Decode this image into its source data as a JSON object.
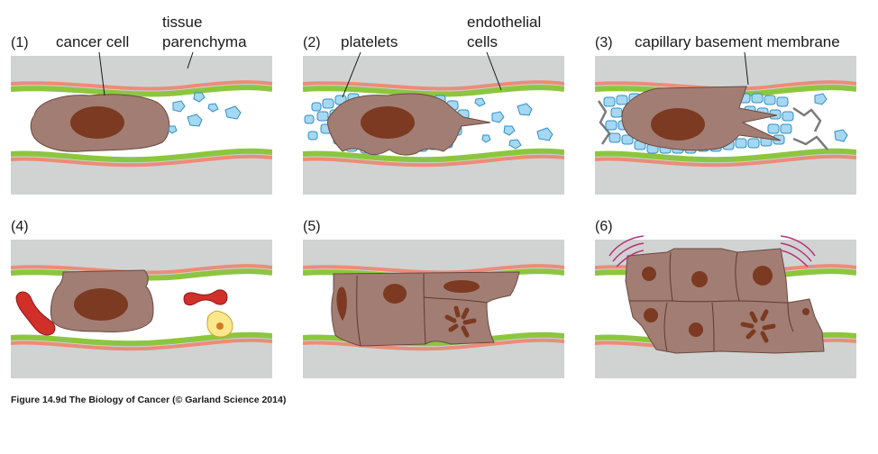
{
  "panels": [
    {
      "number": "(1)"
    },
    {
      "number": "(2)"
    },
    {
      "number": "(3)"
    },
    {
      "number": "(4)"
    },
    {
      "number": "(5)"
    },
    {
      "number": "(6)"
    }
  ],
  "labels": {
    "cancer_cell": "cancer cell",
    "tissue_line1": "tissue",
    "tissue_line2": "parenchyma",
    "platelets": "platelets",
    "endothelial_line1": "endothelial",
    "endothelial_line2": "cells",
    "basement_membrane": "capillary basement membrane"
  },
  "caption": "Figure 14.9d  The Biology of Cancer (© Garland Science 2014)",
  "colors": {
    "tissue": "#d0d3d2",
    "endothelium": "#8cc63f",
    "basement_membrane": "#ec8c78",
    "cancer_cell": "#a27d73",
    "nucleus": "#7b3a21",
    "platelet_fill": "#a6d8f2",
    "platelet_stroke": "#2f8fc3",
    "red_cell": "#d12f2a",
    "white_cell": "#fbe88a",
    "fibrin": "#7a7a7a",
    "signal": "#b8317b"
  }
}
